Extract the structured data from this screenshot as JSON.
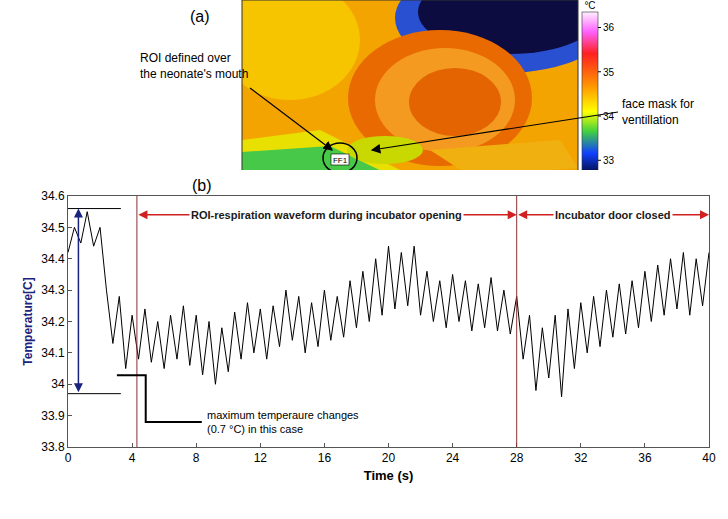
{
  "figure_a": {
    "label": "(a)",
    "roi_label": "ROI defined over the neonate's mouth",
    "mask_label": "face mask for ventillation",
    "roi_tag": "FF1",
    "colorbar": {
      "title": "°C",
      "range": [
        32.6,
        36.35
      ],
      "ticks": [
        33,
        34,
        35,
        36
      ]
    }
  },
  "chart_data": {
    "type": "line",
    "title": "(b)",
    "x_label": "Time (s)",
    "y_label": "Temperature[C]",
    "color": "#000000",
    "x": [
      0,
      0.4,
      0.8,
      1.2,
      1.6,
      2.0,
      2.4,
      2.8,
      3.2,
      3.6,
      4.0,
      4.4,
      4.8,
      5.2,
      5.6,
      6.0,
      6.4,
      6.8,
      7.2,
      7.6,
      8.0,
      8.4,
      8.8,
      9.2,
      9.6,
      10.0,
      10.4,
      10.8,
      11.2,
      11.6,
      12.0,
      12.4,
      12.8,
      13.2,
      13.6,
      14.0,
      14.4,
      14.8,
      15.2,
      15.6,
      16.0,
      16.4,
      16.8,
      17.2,
      17.6,
      18.0,
      18.4,
      18.8,
      19.2,
      19.6,
      20.0,
      20.4,
      20.8,
      21.2,
      21.6,
      22.0,
      22.4,
      22.8,
      23.2,
      23.6,
      24.0,
      24.4,
      24.8,
      25.2,
      25.6,
      26.0,
      26.4,
      26.8,
      27.2,
      27.6,
      28.0,
      28.4,
      28.8,
      29.2,
      29.6,
      30.0,
      30.4,
      30.8,
      31.2,
      31.6,
      32.0,
      32.4,
      32.8,
      33.2,
      33.6,
      34.0,
      34.4,
      34.8,
      35.2,
      35.6,
      36.0,
      36.4,
      36.8,
      37.2,
      37.6,
      38.0,
      38.4,
      38.8,
      39.2,
      39.6,
      40.0
    ],
    "values": [
      34.42,
      34.5,
      34.45,
      34.55,
      34.44,
      34.5,
      34.3,
      34.13,
      34.28,
      34.05,
      34.22,
      34.08,
      34.24,
      34.07,
      34.2,
      34.05,
      34.22,
      34.08,
      34.25,
      34.06,
      34.22,
      34.03,
      34.2,
      34.0,
      34.18,
      34.04,
      34.23,
      34.08,
      34.26,
      34.1,
      34.24,
      34.08,
      34.25,
      34.12,
      34.3,
      34.14,
      34.28,
      34.1,
      34.26,
      34.12,
      34.3,
      34.14,
      34.28,
      34.15,
      34.33,
      34.18,
      34.36,
      34.2,
      34.4,
      34.22,
      34.44,
      34.24,
      34.42,
      34.25,
      34.44,
      34.22,
      34.36,
      34.2,
      34.33,
      34.18,
      34.35,
      34.2,
      34.33,
      34.17,
      34.32,
      34.18,
      34.34,
      34.17,
      34.3,
      34.16,
      34.28,
      34.08,
      34.22,
      33.98,
      34.18,
      34.02,
      34.22,
      33.96,
      34.24,
      34.05,
      34.26,
      34.1,
      34.28,
      34.12,
      34.3,
      34.15,
      34.32,
      34.16,
      34.33,
      34.18,
      34.36,
      34.2,
      34.38,
      34.22,
      34.4,
      34.24,
      34.42,
      34.22,
      34.4,
      34.25,
      34.42
    ],
    "xlim": [
      0,
      40
    ],
    "xticks": [
      0,
      4,
      8,
      12,
      16,
      20,
      24,
      28,
      32,
      36,
      40
    ],
    "ylim": [
      33.8,
      34.6
    ],
    "yticks": [
      33.8,
      33.9,
      34,
      34.1,
      34.2,
      34.3,
      34.4,
      34.5,
      34.6
    ],
    "grid": false,
    "vlines": [
      4.3,
      28
    ],
    "spans": [
      {
        "label": "ROI-respiration waveform during incubator opening",
        "x": [
          4.3,
          28
        ]
      },
      {
        "label": "Incubator door closed",
        "x": [
          28,
          40
        ]
      }
    ],
    "range_marker": {
      "label": "maximum temperaure changes (0.7 °C) in this case",
      "x": 0.65,
      "y": [
        33.97,
        34.56
      ]
    }
  }
}
